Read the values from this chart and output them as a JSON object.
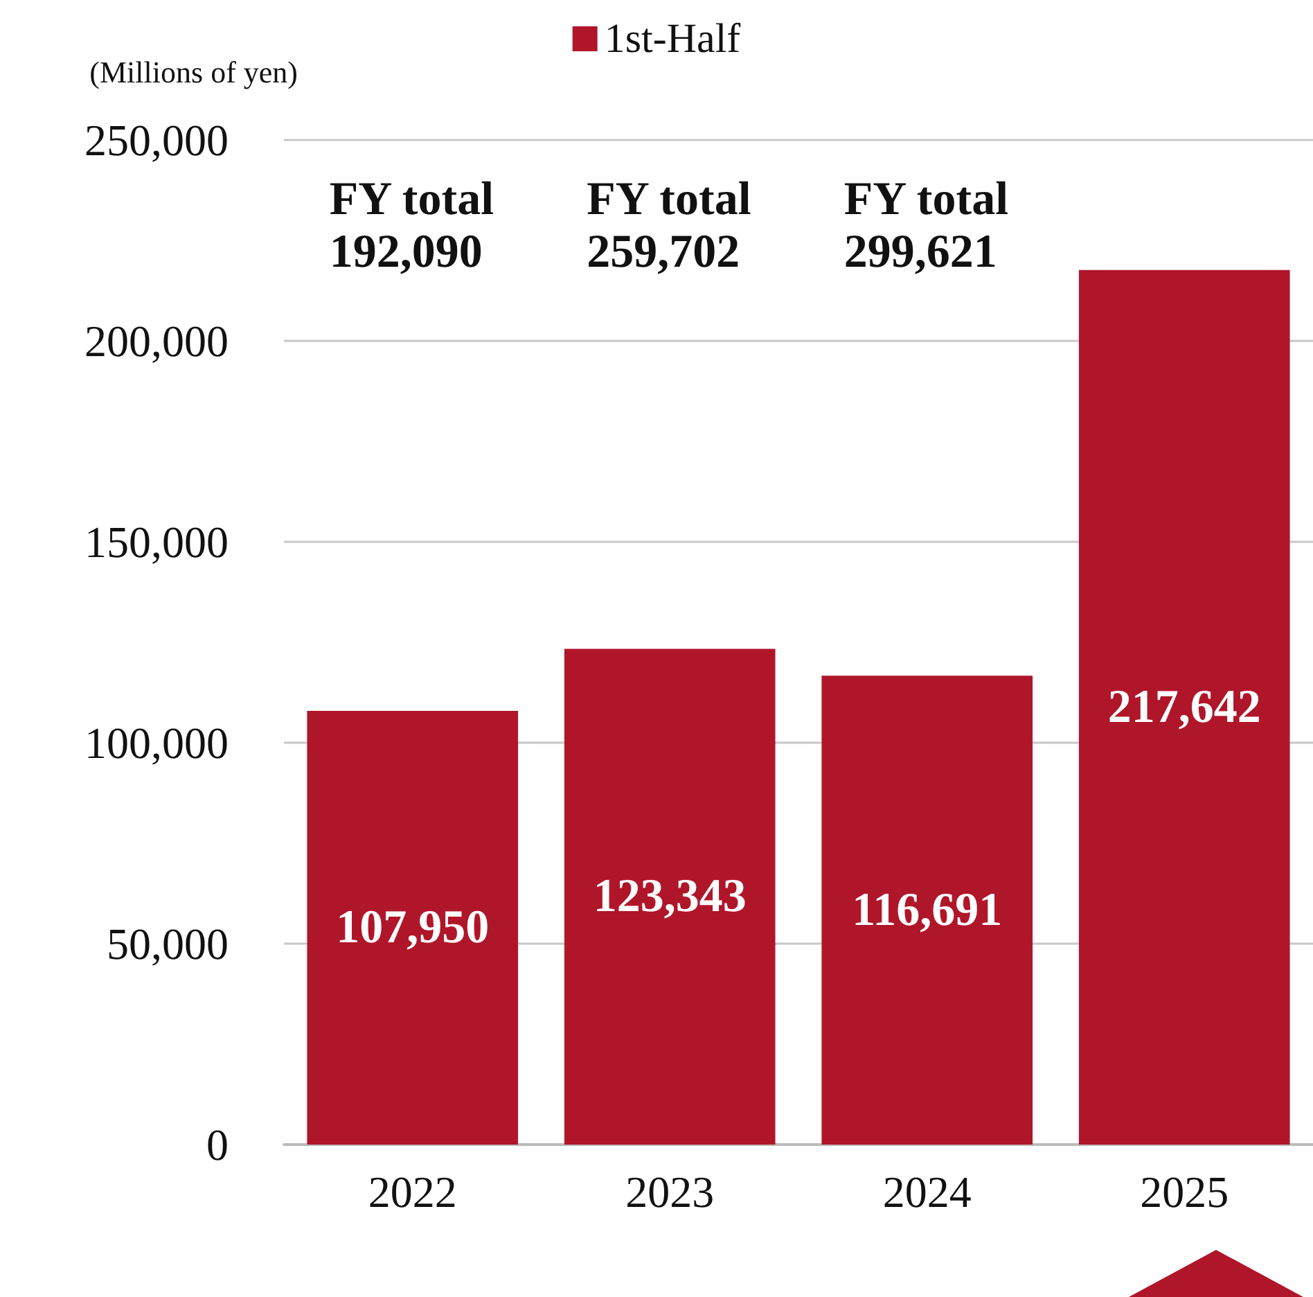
{
  "chart_data": {
    "type": "bar",
    "ylabel": "(Millions of yen)",
    "categories": [
      "2022",
      "2023",
      "2024",
      "2025"
    ],
    "series": [
      {
        "name": "1st-Half",
        "color": "#b0162a",
        "values": [
          107950,
          123343,
          116691,
          217642
        ],
        "value_labels": [
          "107,950",
          "123,343",
          "116,691",
          "217,642"
        ]
      }
    ],
    "ylim": [
      0,
      250000
    ],
    "yticks": [
      0,
      {
        "value": 50000,
        "label": "50,000"
      },
      {
        "value": 100000,
        "label": "100,000"
      },
      {
        "value": 150000,
        "label": "150,000"
      },
      {
        "value": 200000,
        "label": "200,000"
      },
      {
        "value": 250000,
        "label": "250,000"
      }
    ],
    "grid": "y",
    "legend": "top",
    "annotations": [
      "FY total\n192,090",
      "FY total\n259,702",
      "FY total\n299,621"
    ]
  }
}
